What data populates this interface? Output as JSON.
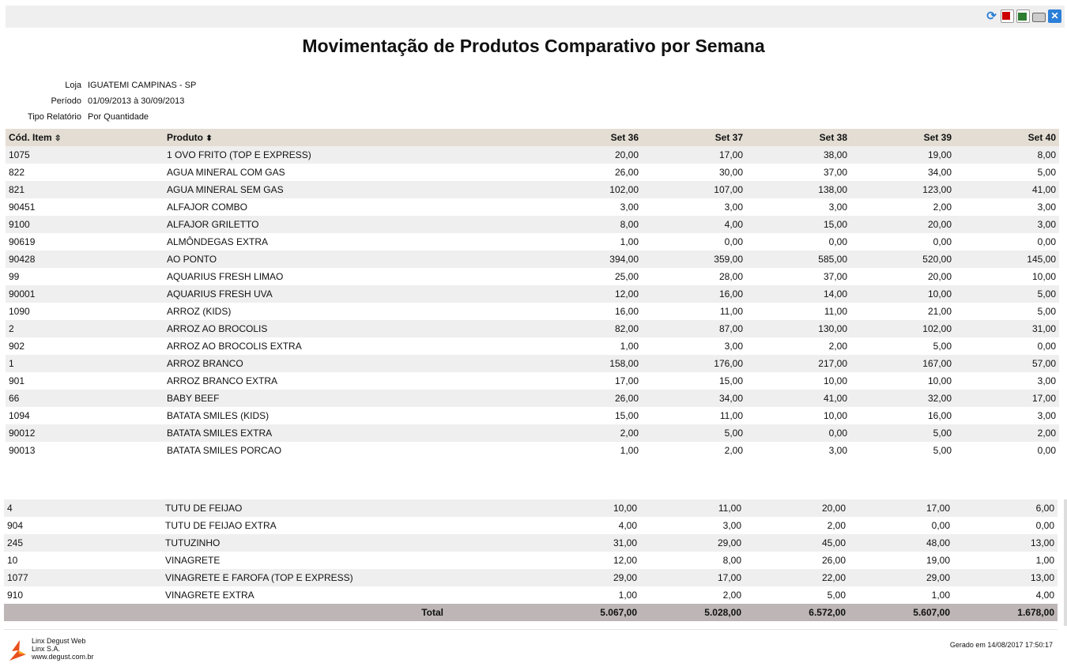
{
  "title": "Movimentação de Produtos Comparativo por Semana",
  "meta": {
    "loja_label": "Loja",
    "loja": "IGUATEMI CAMPINAS - SP",
    "periodo_label": "Período",
    "periodo": "01/09/2013 à 30/09/2013",
    "tipo_label": "Tipo Relatório",
    "tipo": "Por Quantidade"
  },
  "toolbar": {
    "icons": [
      "refresh-icon",
      "pdf-icon",
      "excel-icon",
      "print-icon",
      "close-icon"
    ]
  },
  "table": {
    "columns": [
      "Cód. Item",
      "Produto",
      "Set 36",
      "Set 37",
      "Set 38",
      "Set 39",
      "Set 40"
    ],
    "rows_top": [
      [
        "1075",
        "1 OVO FRITO (TOP E EXPRESS)",
        "20,00",
        "17,00",
        "38,00",
        "19,00",
        "8,00"
      ],
      [
        "822",
        "AGUA MINERAL COM GAS",
        "26,00",
        "30,00",
        "37,00",
        "34,00",
        "5,00"
      ],
      [
        "821",
        "AGUA MINERAL SEM GAS",
        "102,00",
        "107,00",
        "138,00",
        "123,00",
        "41,00"
      ],
      [
        "90451",
        "ALFAJOR COMBO",
        "3,00",
        "3,00",
        "3,00",
        "2,00",
        "3,00"
      ],
      [
        "9100",
        "ALFAJOR GRILETTO",
        "8,00",
        "4,00",
        "15,00",
        "20,00",
        "3,00"
      ],
      [
        "90619",
        "ALMÔNDEGAS EXTRA",
        "1,00",
        "0,00",
        "0,00",
        "0,00",
        "0,00"
      ],
      [
        "90428",
        "AO PONTO",
        "394,00",
        "359,00",
        "585,00",
        "520,00",
        "145,00"
      ],
      [
        "99",
        "AQUARIUS FRESH LIMAO",
        "25,00",
        "28,00",
        "37,00",
        "20,00",
        "10,00"
      ],
      [
        "90001",
        "AQUARIUS FRESH UVA",
        "12,00",
        "16,00",
        "14,00",
        "10,00",
        "5,00"
      ],
      [
        "1090",
        "ARROZ (KIDS)",
        "16,00",
        "11,00",
        "11,00",
        "21,00",
        "5,00"
      ],
      [
        "2",
        "ARROZ AO BROCOLIS",
        "82,00",
        "87,00",
        "130,00",
        "102,00",
        "31,00"
      ],
      [
        "902",
        "ARROZ AO BROCOLIS EXTRA",
        "1,00",
        "3,00",
        "2,00",
        "5,00",
        "0,00"
      ],
      [
        "1",
        "ARROZ BRANCO",
        "158,00",
        "176,00",
        "217,00",
        "167,00",
        "57,00"
      ],
      [
        "901",
        "ARROZ BRANCO EXTRA",
        "17,00",
        "15,00",
        "10,00",
        "10,00",
        "3,00"
      ],
      [
        "66",
        "BABY BEEF",
        "26,00",
        "34,00",
        "41,00",
        "32,00",
        "17,00"
      ],
      [
        "1094",
        "BATATA SMILES (KIDS)",
        "15,00",
        "11,00",
        "10,00",
        "16,00",
        "3,00"
      ],
      [
        "90012",
        "BATATA SMILES EXTRA",
        "2,00",
        "5,00",
        "0,00",
        "5,00",
        "2,00"
      ],
      [
        "90013",
        "BATATA SMILES PORCAO",
        "1,00",
        "2,00",
        "3,00",
        "5,00",
        "0,00"
      ]
    ],
    "rows_bottom": [
      [
        "4",
        "TUTU DE FEIJAO",
        "10,00",
        "11,00",
        "20,00",
        "17,00",
        "6,00"
      ],
      [
        "904",
        "TUTU DE FEIJAO EXTRA",
        "4,00",
        "3,00",
        "2,00",
        "0,00",
        "0,00"
      ],
      [
        "245",
        "TUTUZINHO",
        "31,00",
        "29,00",
        "45,00",
        "48,00",
        "13,00"
      ],
      [
        "10",
        "VINAGRETE",
        "12,00",
        "8,00",
        "26,00",
        "19,00",
        "1,00"
      ],
      [
        "1077",
        "VINAGRETE E FAROFA (TOP E EXPRESS)",
        "29,00",
        "17,00",
        "22,00",
        "29,00",
        "13,00"
      ],
      [
        "910",
        "VINAGRETE EXTRA",
        "1,00",
        "2,00",
        "5,00",
        "1,00",
        "4,00"
      ]
    ],
    "total": {
      "label": "Total",
      "values": [
        "5.067,00",
        "5.028,00",
        "6.572,00",
        "5.607,00",
        "1.678,00"
      ]
    }
  },
  "footer": {
    "line1": "Linx Degust Web",
    "line2": "Linx S.A.",
    "line3": "www.degust.com.br",
    "generated": "Gerado em 14/08/2017 17:50:17"
  }
}
